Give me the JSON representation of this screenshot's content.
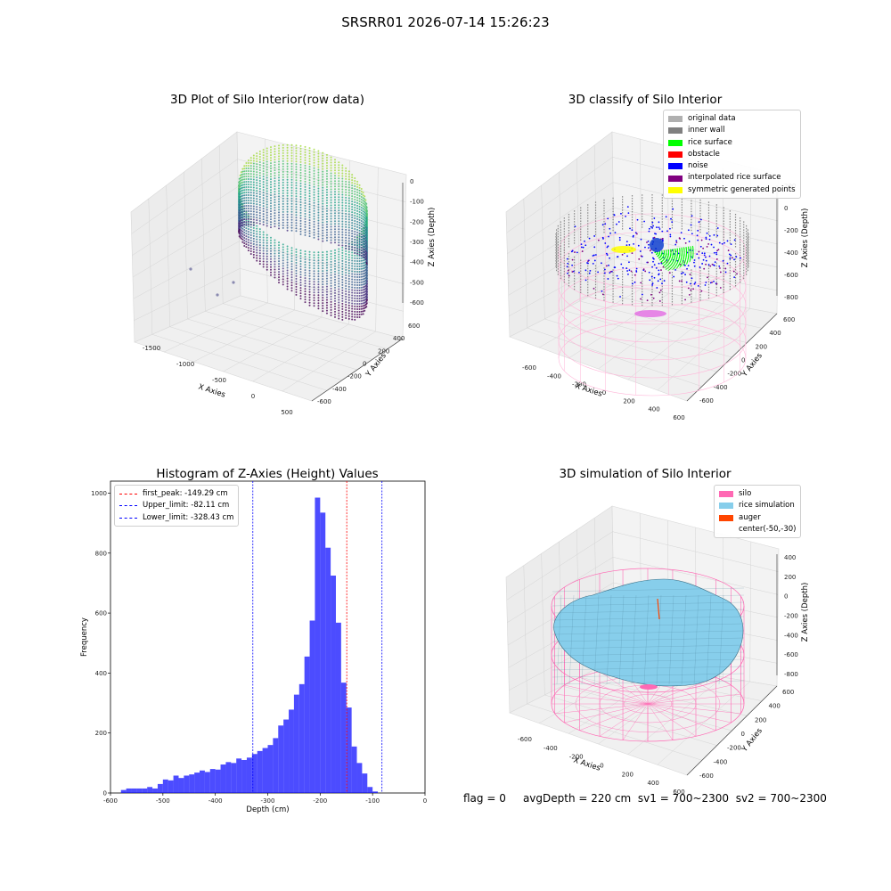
{
  "suptitle": "SRSRR01 2026-07-14 15:26:23",
  "footer": {
    "flag": "flag = 0",
    "avg_depth": "avgDepth = 220 cm",
    "sv1": "sv1 = 700~2300",
    "sv2": "sv2 = 700~2300"
  },
  "chart_data": [
    {
      "type": "scatter",
      "title": "3D Plot of Silo Interior(row data)",
      "xlabel": "X Axies",
      "ylabel": "Y Axies",
      "zlabel": "Z Axies (Depth)",
      "x_ticks": [
        "-1500",
        "-1000",
        "-500",
        "0",
        "500"
      ],
      "y_ticks": [
        "600",
        "400",
        "200",
        "0",
        "-200",
        "-400",
        "-600"
      ],
      "z_ticks": [
        "0",
        "-100",
        "-200",
        "-300",
        "-400",
        "-500",
        "-600"
      ],
      "colormap": "viridis",
      "grid": true
    },
    {
      "type": "scatter",
      "title": "3D classify of Silo Interior",
      "xlabel": "X Axies",
      "ylabel": "Y Axies",
      "zlabel": "Z Axies (Depth)",
      "x_ticks": [
        "-600",
        "-400",
        "-200",
        "0",
        "200",
        "400",
        "600"
      ],
      "y_ticks": [
        "600",
        "400",
        "200",
        "0",
        "-200",
        "-400",
        "-600"
      ],
      "z_ticks": [
        "200",
        "0",
        "-200",
        "-400",
        "-600",
        "-800"
      ],
      "legend": [
        {
          "label": "original data",
          "color": "#b0b0b0"
        },
        {
          "label": "inner wall",
          "color": "#808080"
        },
        {
          "label": "rice surface",
          "color": "#00ff00"
        },
        {
          "label": "obstacle",
          "color": "#ff0000"
        },
        {
          "label": "noise",
          "color": "#0000ff"
        },
        {
          "label": "interpolated rice surface",
          "color": "#800080"
        },
        {
          "label": "symmetric generated points",
          "color": "#ffff00"
        }
      ],
      "legend_position": "top-right",
      "grid": true
    },
    {
      "type": "bar",
      "title": "Histogram of Z-Axies (Height) Values",
      "xlabel": "Depth (cm)",
      "ylabel": "Frequency",
      "xlim": [
        -600,
        0
      ],
      "ylim": [
        0,
        1040
      ],
      "x_ticks": [
        -600,
        -500,
        -400,
        -300,
        -200,
        -100,
        0
      ],
      "y_ticks": [
        0,
        200,
        400,
        600,
        800,
        1000
      ],
      "bin_width": 10,
      "bin_starts": [
        -580,
        -570,
        -560,
        -550,
        -540,
        -530,
        -520,
        -510,
        -500,
        -490,
        -480,
        -470,
        -460,
        -450,
        -440,
        -430,
        -420,
        -410,
        -400,
        -390,
        -380,
        -370,
        -360,
        -350,
        -340,
        -330,
        -320,
        -310,
        -300,
        -290,
        -280,
        -270,
        -260,
        -250,
        -240,
        -230,
        -220,
        -210,
        -200,
        -190,
        -180,
        -170,
        -160,
        -150,
        -140,
        -130,
        -120,
        -110,
        -100,
        -90,
        -80,
        -70,
        -60,
        -50,
        -40,
        -30,
        -20
      ],
      "values": [
        10,
        15,
        15,
        15,
        15,
        20,
        15,
        30,
        45,
        42,
        58,
        50,
        58,
        62,
        68,
        75,
        70,
        80,
        78,
        95,
        103,
        100,
        115,
        110,
        118,
        130,
        140,
        150,
        160,
        183,
        225,
        245,
        278,
        328,
        363,
        455,
        575,
        985,
        935,
        818,
        725,
        568,
        368,
        285,
        155,
        100,
        65,
        20,
        5,
        0,
        0,
        0,
        0,
        0,
        0,
        0,
        0
      ],
      "color": "#0000ff",
      "vlines": [
        {
          "label": "first_peak: -149.29 cm",
          "x": -149.29,
          "color": "#ff0000"
        },
        {
          "label": "Upper_limit: -82.11 cm",
          "x": -82.11,
          "color": "#0000ff"
        },
        {
          "label": "Lower_limit: -328.43 cm",
          "x": -328.43,
          "color": "#0000ff"
        }
      ],
      "legend_position": "top-left"
    },
    {
      "type": "other",
      "title": "3D simulation of Silo Interior",
      "xlabel": "X Axies",
      "ylabel": "Y Axies",
      "zlabel": "Z Axies (Depth)",
      "x_ticks": [
        "-600",
        "-400",
        "-200",
        "0",
        "200",
        "400",
        "600"
      ],
      "y_ticks": [
        "600",
        "400",
        "200",
        "0",
        "-200",
        "-400",
        "-600"
      ],
      "z_ticks": [
        "400",
        "200",
        "0",
        "-200",
        "-400",
        "-600",
        "-800"
      ],
      "legend": [
        {
          "label": "silo",
          "color": "#ff69b4"
        },
        {
          "label": "rice simulation",
          "color": "#87ceeb"
        },
        {
          "label": "auger",
          "color": "#ff4500"
        },
        {
          "label": "center(-50,-30)",
          "color": "none"
        }
      ],
      "legend_position": "top-right",
      "grid": true
    }
  ]
}
